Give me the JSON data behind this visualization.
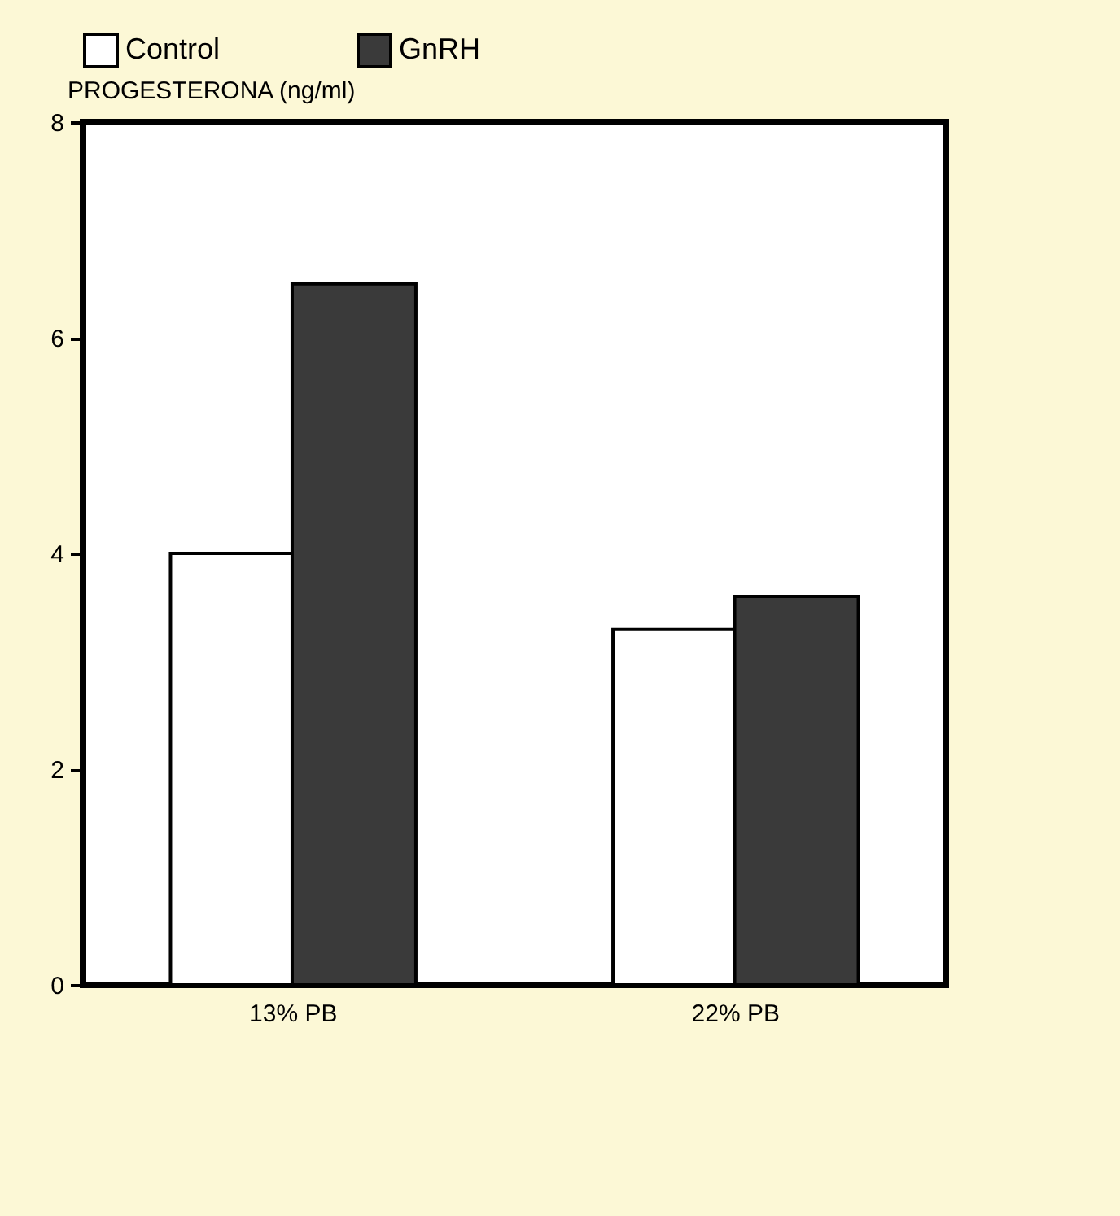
{
  "chart_data": {
    "type": "bar",
    "ylabel": "PROGESTERONA (ng/ml)",
    "categories": [
      "13% PB",
      "22% PB"
    ],
    "series": [
      {
        "name": "Control",
        "color": "#ffffff",
        "values": [
          4.0,
          3.3
        ]
      },
      {
        "name": "GnRH",
        "color": "#3a3a3a",
        "values": [
          6.5,
          3.6
        ]
      }
    ],
    "ylim": [
      0,
      8
    ],
    "yticks": [
      0,
      2,
      4,
      6,
      8
    ],
    "legend": "top"
  }
}
